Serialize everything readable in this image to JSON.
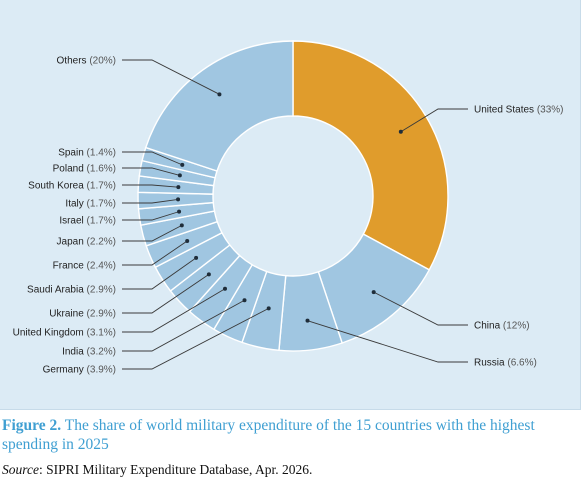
{
  "chart_data": {
    "type": "pie",
    "subtype": "donut",
    "slices": [
      {
        "name": "United States",
        "label": "(33%)",
        "value": 33,
        "color": "#e09c2c"
      },
      {
        "name": "China",
        "label": "(12%)",
        "value": 12,
        "color": "#a0c6e1"
      },
      {
        "name": "Russia",
        "label": "(6.6%)",
        "value": 6.6,
        "color": "#a0c6e1"
      },
      {
        "name": "Germany",
        "label": "(3.9%)",
        "value": 3.9,
        "color": "#a0c6e1"
      },
      {
        "name": "India",
        "label": "(3.2%)",
        "value": 3.2,
        "color": "#a0c6e1"
      },
      {
        "name": "United Kingdom",
        "label": "(3.1%)",
        "value": 3.1,
        "color": "#a0c6e1"
      },
      {
        "name": "Ukraine",
        "label": "(2.9%)",
        "value": 2.9,
        "color": "#a0c6e1"
      },
      {
        "name": "Saudi Arabia",
        "label": "(2.9%)",
        "value": 2.9,
        "color": "#a0c6e1"
      },
      {
        "name": "France",
        "label": "(2.4%)",
        "value": 2.4,
        "color": "#a0c6e1"
      },
      {
        "name": "Japan",
        "label": "(2.2%)",
        "value": 2.2,
        "color": "#a0c6e1"
      },
      {
        "name": "Israel",
        "label": "(1.7%)",
        "value": 1.7,
        "color": "#a0c6e1"
      },
      {
        "name": "Italy",
        "label": "(1.7%)",
        "value": 1.7,
        "color": "#a0c6e1"
      },
      {
        "name": "South Korea",
        "label": "(1.7%)",
        "value": 1.7,
        "color": "#a0c6e1"
      },
      {
        "name": "Poland",
        "label": "(1.6%)",
        "value": 1.6,
        "color": "#a0c6e1"
      },
      {
        "name": "Spain",
        "label": "(1.4%)",
        "value": 1.4,
        "color": "#a0c6e1"
      },
      {
        "name": "Others",
        "label": "(20%)",
        "value": 20,
        "color": "#a0c6e1"
      }
    ],
    "start": "12 o'clock",
    "direction": "clockwise"
  },
  "caption": {
    "figure_label": "Figure 2.",
    "text": " The share of world military expenditure of the 15 countries with the highest spending in 2025"
  },
  "source": {
    "label": "Source",
    "text": ": SIPRI Military Expenditure Database, Apr. 2026."
  }
}
